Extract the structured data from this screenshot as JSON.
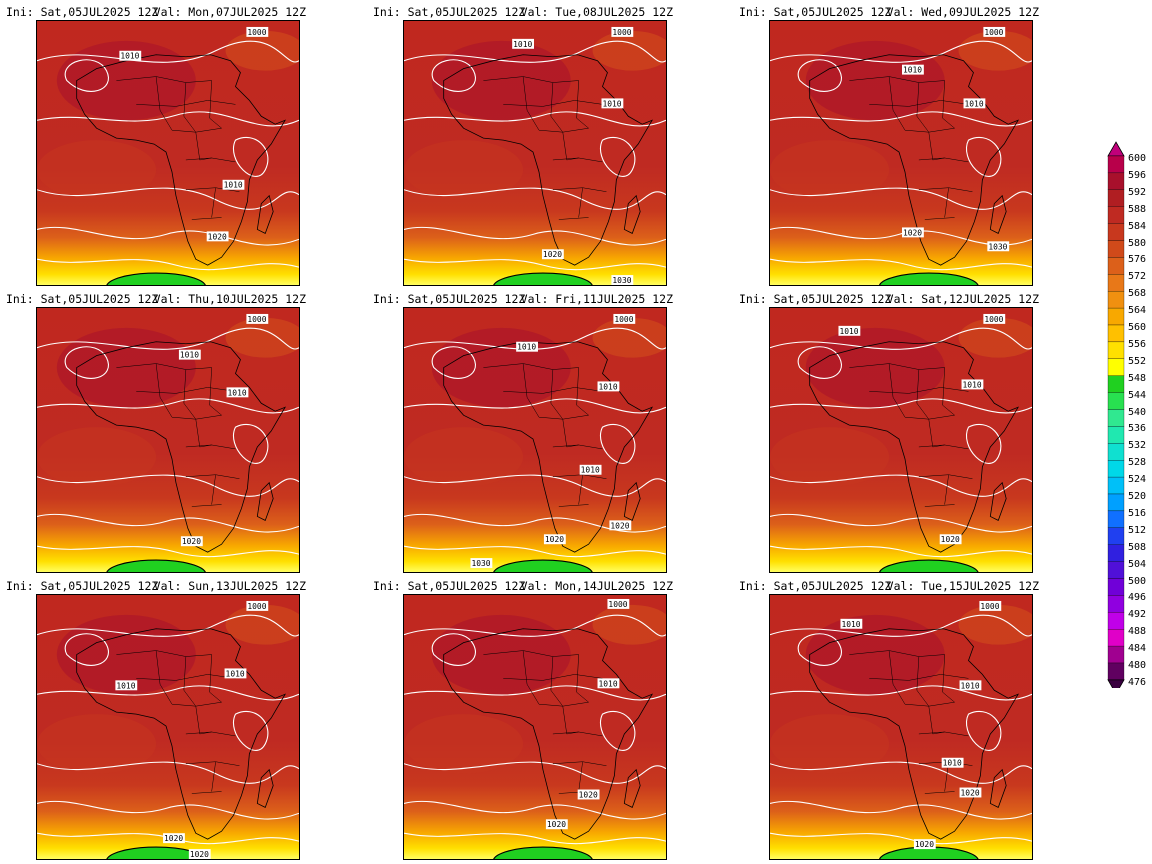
{
  "panels": [
    {
      "ini": "Ini: Sat,05JUL2025 12Z",
      "valid": "Val: Mon,07JUL2025 12Z",
      "isobars": [
        {
          "text": "1010"
        },
        {
          "text": "1000"
        },
        {
          "text": "1010"
        },
        {
          "text": "1020"
        }
      ]
    },
    {
      "ini": "Ini: Sat,05JUL2025 12Z",
      "valid": "Val: Tue,08JUL2025 12Z",
      "isobars": [
        {
          "text": "1010"
        },
        {
          "text": "1000"
        },
        {
          "text": "1010"
        },
        {
          "text": "1020"
        },
        {
          "text": "1030"
        }
      ]
    },
    {
      "ini": "Ini: Sat,05JUL2025 12Z",
      "valid": "Val: Wed,09JUL2025 12Z",
      "isobars": [
        {
          "text": "1010"
        },
        {
          "text": "1000"
        },
        {
          "text": "1010"
        },
        {
          "text": "1020"
        },
        {
          "text": "1030"
        },
        {
          "text": "1030"
        }
      ]
    },
    {
      "ini": "Ini: Sat,05JUL2025 12Z",
      "valid": "Val: Thu,10JUL2025 12Z",
      "isobars": [
        {
          "text": "1010"
        },
        {
          "text": "1000"
        },
        {
          "text": "1010"
        },
        {
          "text": "1020"
        }
      ]
    },
    {
      "ini": "Ini: Sat,05JUL2025 12Z",
      "valid": "Val: Fri,11JUL2025 12Z",
      "isobars": [
        {
          "text": "1010"
        },
        {
          "text": "1000"
        },
        {
          "text": "1010"
        },
        {
          "text": "1010"
        },
        {
          "text": "1020"
        },
        {
          "text": "1020"
        },
        {
          "text": "1030"
        }
      ]
    },
    {
      "ini": "Ini: Sat,05JUL2025 12Z",
      "valid": "Val: Sat,12JUL2025 12Z",
      "isobars": [
        {
          "text": "1010"
        },
        {
          "text": "1000"
        },
        {
          "text": "1010"
        },
        {
          "text": "1020"
        }
      ]
    },
    {
      "ini": "Ini: Sat,05JUL2025 12Z",
      "valid": "Val: Sun,13JUL2025 12Z",
      "isobars": [
        {
          "text": "1010"
        },
        {
          "text": "1000"
        },
        {
          "text": "1010"
        },
        {
          "text": "1020"
        },
        {
          "text": "1020"
        }
      ]
    },
    {
      "ini": "Ini: Sat,05JUL2025 12Z",
      "valid": "Val: Mon,14JUL2025 12Z",
      "isobars": [
        {
          "text": "1000"
        },
        {
          "text": "1010"
        },
        {
          "text": "1020"
        },
        {
          "text": "1020"
        }
      ]
    },
    {
      "ini": "Ini: Sat,05JUL2025 12Z",
      "valid": "Val: Tue,15JUL2025 12Z",
      "isobars": [
        {
          "text": "1010"
        },
        {
          "text": "1000"
        },
        {
          "text": "1010"
        },
        {
          "text": "1010"
        },
        {
          "text": "1020"
        },
        {
          "text": "1020"
        }
      ]
    }
  ],
  "colorbar": {
    "levels": [
      "600",
      "596",
      "592",
      "588",
      "584",
      "580",
      "576",
      "572",
      "568",
      "564",
      "560",
      "556",
      "552",
      "548",
      "544",
      "540",
      "536",
      "532",
      "528",
      "524",
      "520",
      "516",
      "512",
      "508",
      "504",
      "500",
      "496",
      "492",
      "488",
      "484",
      "480",
      "476"
    ],
    "colors": [
      "#b8004a",
      "#a8102c",
      "#b01e22",
      "#bf2a22",
      "#c8381e",
      "#d04a1a",
      "#dc601a",
      "#e87818",
      "#f09010",
      "#f8a800",
      "#ffc000",
      "#ffe000",
      "#ffff00",
      "#20d020",
      "#28e050",
      "#30e890",
      "#20e8b0",
      "#10e0d0",
      "#00d8e8",
      "#00c0f8",
      "#00a0ff",
      "#1070ff",
      "#2040f0",
      "#3020e0",
      "#5010d8",
      "#7000d8",
      "#9000e0",
      "#c000e8",
      "#e000c8",
      "#a00090",
      "#600060"
    ]
  }
}
